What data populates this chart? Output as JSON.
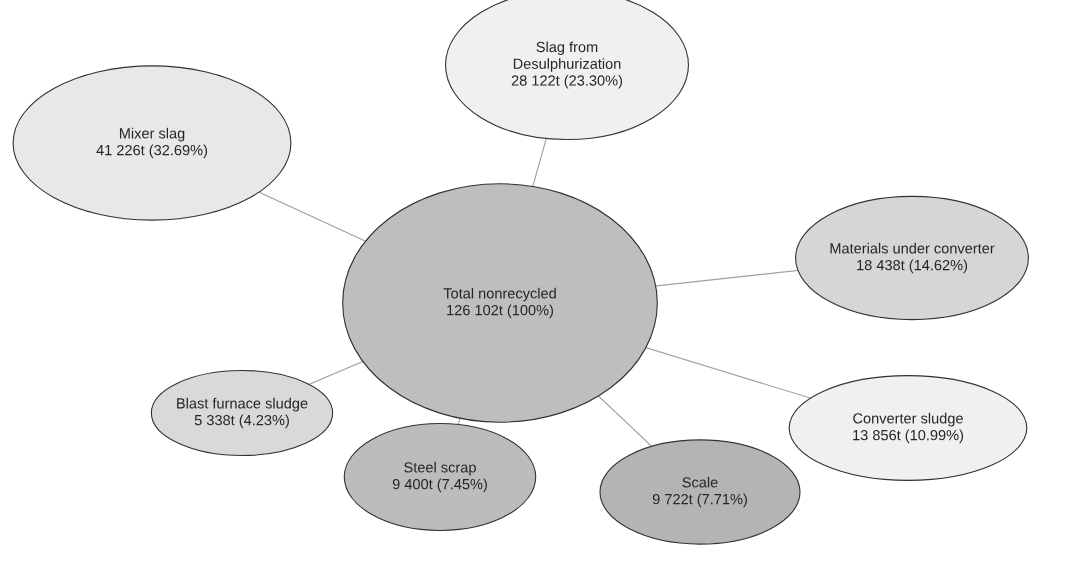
{
  "chart_data": {
    "type": "other",
    "categories": [
      "Total nonrecycled",
      "Slag from Desulphurization",
      "Materials under converter",
      "Converter sludge",
      "Scale",
      "Steel scrap",
      "Blast furnace sludge",
      "Mixer slag"
    ],
    "values": [
      100,
      23.3,
      14.62,
      10.99,
      7.71,
      7.45,
      4.23,
      32.69
    ],
    "value_labels": [
      "126 102t (100%)",
      "28 122t (23.30%)",
      "18 438t (14.62%)",
      "13 856t (10.99%)",
      "9 722t (7.71%)",
      "9 400t (7.45%)",
      "5 338t (4.23%)",
      "41 226t (32.69%)"
    ],
    "colors": [
      "#bebebe",
      "#f0f0f0",
      "#d6d6d6",
      "#f0f0f0",
      "#b4b4b4",
      "#bcbcbc",
      "#d9d9d9",
      "#e8e8e8"
    ]
  }
}
